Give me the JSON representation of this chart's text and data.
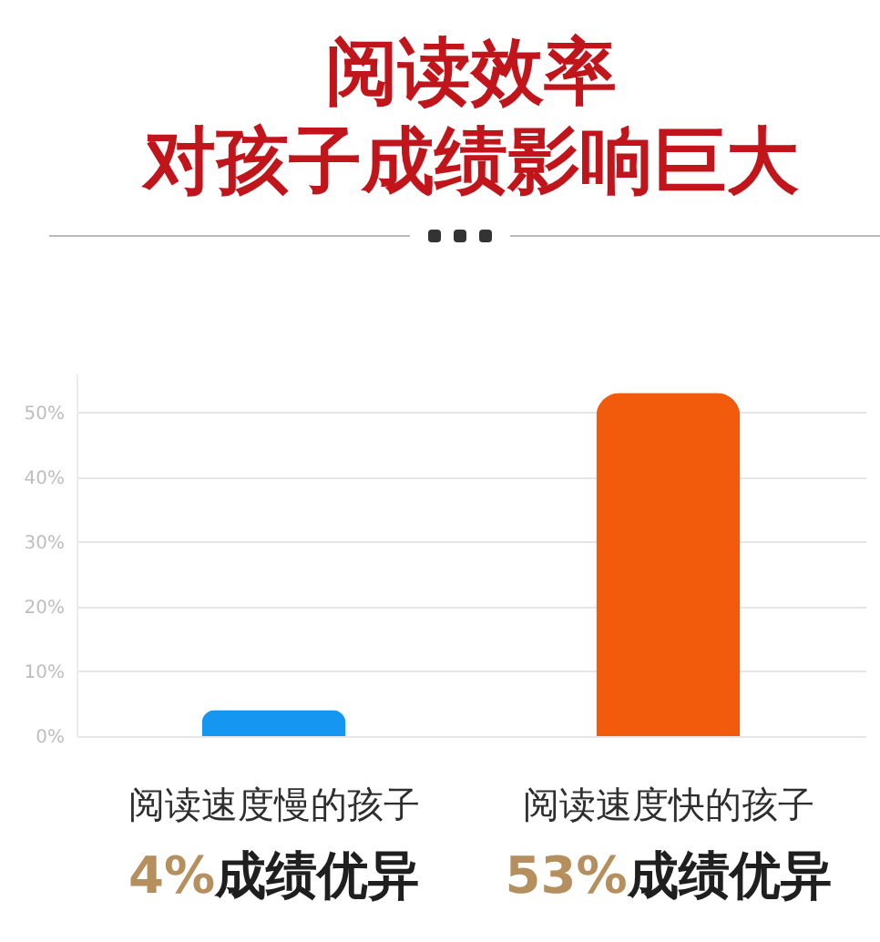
{
  "chart_data": {
    "type": "bar",
    "title": "阅读效率",
    "subtitle": "对孩子成绩影响巨大",
    "categories": [
      "阅读速度慢的孩子",
      "阅读速度快的孩子"
    ],
    "values": [
      4,
      53
    ],
    "colors": [
      "#1596f0",
      "#f25a0c"
    ],
    "value_labels": [
      "4%成绩优异",
      "53%成绩优异"
    ],
    "ylim": [
      0,
      56
    ],
    "yticks": [
      {
        "value": 0,
        "label": "0%"
      },
      {
        "value": 10,
        "label": "10%"
      },
      {
        "value": 20,
        "label": "20%"
      },
      {
        "value": 30,
        "label": "30%"
      },
      {
        "value": 40,
        "label": "40%"
      },
      {
        "value": 50,
        "label": "50%"
      }
    ],
    "grid": "y"
  }
}
